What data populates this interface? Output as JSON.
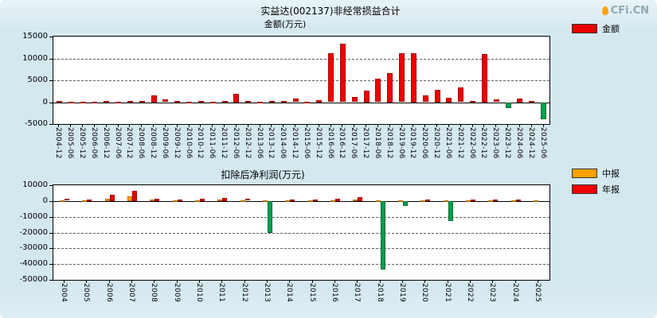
{
  "page": {
    "watermark": "CFi.CN"
  },
  "chart_data": [
    {
      "id": "nonrecurring-total",
      "type": "bar",
      "title": "实益达(002137)非经常损益合计",
      "ylabel": "金额(万元)",
      "xlabel": "",
      "grid": "dashed",
      "legend_position": "top-right",
      "ylim": [
        -5000,
        15000
      ],
      "yticks": [
        15000,
        10000,
        5000,
        0,
        -5000
      ],
      "negative_color": "#00a04c",
      "categories": [
        "2004-12",
        "2005-06",
        "2005-12",
        "2006-06",
        "2006-12",
        "2007-06",
        "2007-12",
        "2008-06",
        "2008-12",
        "2009-06",
        "2009-12",
        "2010-06",
        "2010-12",
        "2011-06",
        "2011-12",
        "2012-06",
        "2012-12",
        "2013-06",
        "2013-12",
        "2014-06",
        "2014-12",
        "2015-06",
        "2015-12",
        "2016-06",
        "2016-12",
        "2017-06",
        "2017-12",
        "2018-06",
        "2018-12",
        "2019-06",
        "2019-12",
        "2020-06",
        "2020-12",
        "2021-06",
        "2021-12",
        "2022-06",
        "2022-12",
        "2023-06",
        "2023-12",
        "2024-06",
        "2024-12",
        "2025-06"
      ],
      "series": [
        {
          "name": "金额",
          "color": "#ee0000",
          "values": [
            200,
            100,
            150,
            100,
            200,
            150,
            300,
            250,
            1600,
            600,
            300,
            150,
            250,
            150,
            300,
            2000,
            300,
            150,
            250,
            200,
            800,
            150,
            500,
            11100,
            13300,
            1100,
            2700,
            5300,
            6700,
            11100,
            11200,
            1500,
            2900,
            1000,
            3300,
            200,
            11000,
            600,
            -1300,
            900,
            300,
            -3800
          ]
        }
      ]
    },
    {
      "id": "net-profit-after-deduction",
      "type": "bar",
      "title": "扣除后净利润(万元)",
      "xlabel": "",
      "grid": "dashed",
      "legend_position": "top-right",
      "ylim": [
        -50000,
        10000
      ],
      "yticks": [
        10000,
        0,
        -10000,
        -20000,
        -30000,
        -40000,
        -50000
      ],
      "negative_color": "#00a04c",
      "categories": [
        "2004",
        "2005",
        "2006",
        "2007",
        "2008",
        "2009",
        "2010",
        "2011",
        "2012",
        "2013",
        "2014",
        "2015",
        "2016",
        "2017",
        "2018",
        "2019",
        "2020",
        "2021",
        "2022",
        "2023",
        "2024",
        "2025"
      ],
      "series": [
        {
          "name": "中报",
          "color": "#ffa200",
          "values": [
            500,
            400,
            1500,
            3000,
            800,
            300,
            500,
            800,
            500,
            300,
            400,
            300,
            500,
            1000,
            600,
            300,
            400,
            400,
            300,
            400,
            300,
            400
          ]
        },
        {
          "name": "年报",
          "color": "#ee0000",
          "values": [
            1200,
            1000,
            4000,
            6500,
            1500,
            800,
            1500,
            2000,
            1200,
            -20000,
            900,
            800,
            1500,
            2500,
            -43500,
            -3000,
            1000,
            -12500,
            800,
            900,
            700,
            null
          ]
        }
      ]
    }
  ]
}
